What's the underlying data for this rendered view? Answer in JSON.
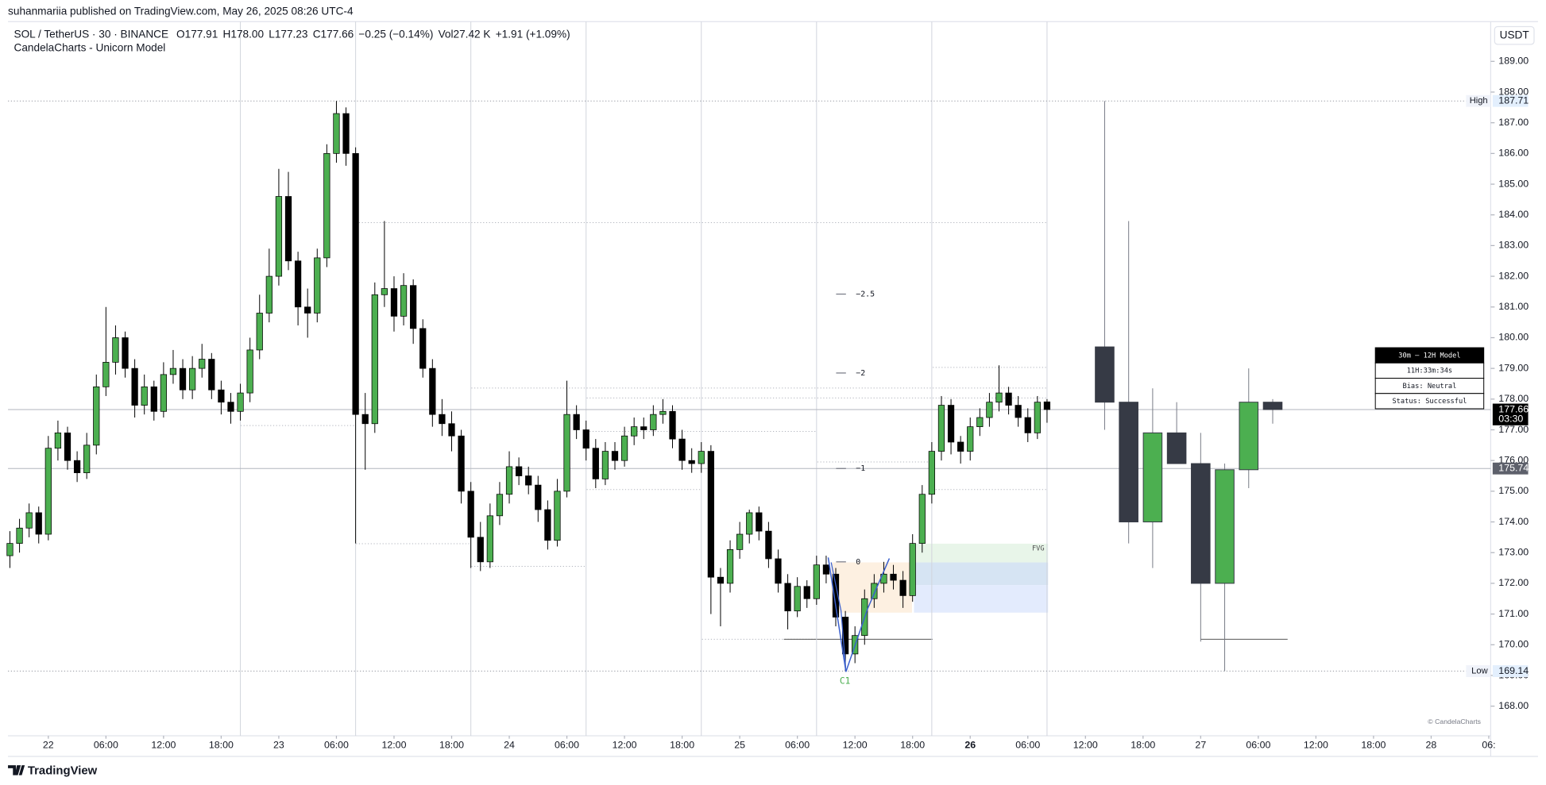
{
  "header": {
    "published": "suhanmariia published on TradingView.com, May 26, 2025 08:26 UTC-4",
    "footer": "TradingView"
  },
  "chart_data": {
    "type": "candlestick",
    "symbol": "SOL / TetherUS · 30 · BINANCE",
    "legend": [
      "O177.91",
      "H178.00",
      "L177.23",
      "C177.66",
      "−0.25 (−0.14%)",
      "Vol27.42 K",
      "+1.91 (+1.09%)"
    ],
    "indicator": "CandelaCharts - Unicorn Model",
    "currency": "USDT",
    "up_color": "#4caf50",
    "down_color": "#000000",
    "candles": [
      [
        172.9,
        173.7,
        172.5,
        173.3
      ],
      [
        173.3,
        174.1,
        173.0,
        173.8
      ],
      [
        173.8,
        174.6,
        173.5,
        174.3
      ],
      [
        174.3,
        174.5,
        173.3,
        173.6
      ],
      [
        173.6,
        176.8,
        173.4,
        176.4
      ],
      [
        176.4,
        177.3,
        176.0,
        176.9
      ],
      [
        176.9,
        177.1,
        175.7,
        176.0
      ],
      [
        176.0,
        176.3,
        175.3,
        175.6
      ],
      [
        175.6,
        176.9,
        175.4,
        176.5
      ],
      [
        176.5,
        178.8,
        176.2,
        178.4
      ],
      [
        178.4,
        181.0,
        178.1,
        179.2
      ],
      [
        179.2,
        180.4,
        178.8,
        180.0
      ],
      [
        180.0,
        180.2,
        178.7,
        179.0
      ],
      [
        179.0,
        179.3,
        177.4,
        177.8
      ],
      [
        177.8,
        178.8,
        177.5,
        178.4
      ],
      [
        178.4,
        178.6,
        177.3,
        177.6
      ],
      [
        177.6,
        179.2,
        177.4,
        178.8
      ],
      [
        178.8,
        179.6,
        178.5,
        179.0
      ],
      [
        179.0,
        179.3,
        178.0,
        178.3
      ],
      [
        178.3,
        179.4,
        178.0,
        179.0
      ],
      [
        179.0,
        179.8,
        178.7,
        179.3
      ],
      [
        179.3,
        179.5,
        178.0,
        178.3
      ],
      [
        178.3,
        178.6,
        177.5,
        177.9
      ],
      [
        177.9,
        178.2,
        177.2,
        177.6
      ],
      [
        177.6,
        178.5,
        177.3,
        178.2
      ],
      [
        178.2,
        180.0,
        177.9,
        179.6
      ],
      [
        179.6,
        181.4,
        179.3,
        180.8
      ],
      [
        180.8,
        182.9,
        180.5,
        182.0
      ],
      [
        182.0,
        185.5,
        181.7,
        184.6
      ],
      [
        184.6,
        185.4,
        182.2,
        182.5
      ],
      [
        182.5,
        182.8,
        180.4,
        181.0
      ],
      [
        181.0,
        181.6,
        180.0,
        180.8
      ],
      [
        180.8,
        182.9,
        180.5,
        182.6
      ],
      [
        182.6,
        186.3,
        182.3,
        186.0
      ],
      [
        186.0,
        187.71,
        185.7,
        187.3
      ],
      [
        187.3,
        187.5,
        185.6,
        186.0
      ],
      [
        186.0,
        186.2,
        173.3,
        177.5
      ],
      [
        177.5,
        178.2,
        175.7,
        177.2
      ],
      [
        177.2,
        181.8,
        176.9,
        181.4
      ],
      [
        181.4,
        183.8,
        181.0,
        181.6
      ],
      [
        181.6,
        182.0,
        180.2,
        180.7
      ],
      [
        180.7,
        182.1,
        180.4,
        181.7
      ],
      [
        181.7,
        181.9,
        179.8,
        180.3
      ],
      [
        180.3,
        180.6,
        178.7,
        179.0
      ],
      [
        179.0,
        179.3,
        177.1,
        177.5
      ],
      [
        177.5,
        178.0,
        176.8,
        177.2
      ],
      [
        177.2,
        177.6,
        176.3,
        176.8
      ],
      [
        176.8,
        177.0,
        174.6,
        175.0
      ],
      [
        175.0,
        175.3,
        172.5,
        173.5
      ],
      [
        173.5,
        174.0,
        172.4,
        172.7
      ],
      [
        172.7,
        174.6,
        172.5,
        174.2
      ],
      [
        174.2,
        175.3,
        173.9,
        174.9
      ],
      [
        174.9,
        176.3,
        174.6,
        175.8
      ],
      [
        175.8,
        176.1,
        175.2,
        175.5
      ],
      [
        175.5,
        175.8,
        174.9,
        175.2
      ],
      [
        175.2,
        175.5,
        174.0,
        174.4
      ],
      [
        174.4,
        174.7,
        173.1,
        173.4
      ],
      [
        173.4,
        175.4,
        173.2,
        175.0
      ],
      [
        175.0,
        178.6,
        174.8,
        177.5
      ],
      [
        177.5,
        177.8,
        176.7,
        177.0
      ],
      [
        177.0,
        177.3,
        176.0,
        176.4
      ],
      [
        176.4,
        176.7,
        175.1,
        175.4
      ],
      [
        175.4,
        176.6,
        175.2,
        176.3
      ],
      [
        176.3,
        176.6,
        175.7,
        176.0
      ],
      [
        176.0,
        177.1,
        175.8,
        176.8
      ],
      [
        176.8,
        177.4,
        176.5,
        177.1
      ],
      [
        177.1,
        177.4,
        176.7,
        177.0
      ],
      [
        177.0,
        177.8,
        176.8,
        177.5
      ],
      [
        177.5,
        178.0,
        177.2,
        177.6
      ],
      [
        177.6,
        177.8,
        176.4,
        176.7
      ],
      [
        176.7,
        177.0,
        175.7,
        176.0
      ],
      [
        176.0,
        176.4,
        175.6,
        175.9
      ],
      [
        175.9,
        176.6,
        175.6,
        176.3
      ],
      [
        176.3,
        176.5,
        171.0,
        172.2
      ],
      [
        172.2,
        172.5,
        170.6,
        172.0
      ],
      [
        172.0,
        173.4,
        171.7,
        173.1
      ],
      [
        173.1,
        174.0,
        172.8,
        173.6
      ],
      [
        173.6,
        174.4,
        173.3,
        174.3
      ],
      [
        174.3,
        174.5,
        173.4,
        173.7
      ],
      [
        173.7,
        174.0,
        172.5,
        172.8
      ],
      [
        172.8,
        173.1,
        171.7,
        172.0
      ],
      [
        172.0,
        172.3,
        170.5,
        171.1
      ],
      [
        171.1,
        172.2,
        170.9,
        171.9
      ],
      [
        171.9,
        172.1,
        171.2,
        171.5
      ],
      [
        171.5,
        172.9,
        171.3,
        172.6
      ],
      [
        172.6,
        172.9,
        172.0,
        172.3
      ],
      [
        172.3,
        172.5,
        170.6,
        170.9
      ],
      [
        170.9,
        171.1,
        169.14,
        169.7
      ],
      [
        169.7,
        170.6,
        169.4,
        170.3
      ],
      [
        170.3,
        171.8,
        170.0,
        171.5
      ],
      [
        171.5,
        172.3,
        171.2,
        172.0
      ],
      [
        172.0,
        172.7,
        171.7,
        172.3
      ],
      [
        172.3,
        172.6,
        171.8,
        172.1
      ],
      [
        172.1,
        172.4,
        171.2,
        171.6
      ],
      [
        171.6,
        173.6,
        171.4,
        173.3
      ],
      [
        173.3,
        175.2,
        173.0,
        174.9
      ],
      [
        174.9,
        176.6,
        174.6,
        176.3
      ],
      [
        176.3,
        178.1,
        176.0,
        177.8
      ],
      [
        177.8,
        178.0,
        176.2,
        176.6
      ],
      [
        176.6,
        176.8,
        175.9,
        176.3
      ],
      [
        176.3,
        177.4,
        176.0,
        177.1
      ],
      [
        177.1,
        177.7,
        176.8,
        177.4
      ],
      [
        177.4,
        178.2,
        177.1,
        177.9
      ],
      [
        177.9,
        179.1,
        177.6,
        178.2
      ],
      [
        178.2,
        178.4,
        177.5,
        177.8
      ],
      [
        177.8,
        178.1,
        177.1,
        177.4
      ],
      [
        177.4,
        177.7,
        176.6,
        176.9
      ],
      [
        176.9,
        178.1,
        176.7,
        177.9
      ],
      [
        177.91,
        178.0,
        177.23,
        177.66
      ]
    ],
    "htf_candles": {
      "up_color": "#4caf50",
      "down_color": "#363a45",
      "x": [
        114,
        116.5,
        119,
        121.5,
        124,
        126.5,
        129,
        131.5
      ],
      "ohlc": [
        [
          179.7,
          187.71,
          177.0,
          177.9
        ],
        [
          177.9,
          183.8,
          173.3,
          174.0
        ],
        [
          174.0,
          178.35,
          172.5,
          176.9
        ],
        [
          176.9,
          177.9,
          175.9,
          175.9
        ],
        [
          175.9,
          176.9,
          170.1,
          172.0
        ],
        [
          172.0,
          175.9,
          169.14,
          175.7
        ],
        [
          175.7,
          179.0,
          175.1,
          177.9
        ],
        [
          177.9,
          178.0,
          177.2,
          177.66
        ]
      ]
    },
    "xlim": [
      -0.2,
      154.2
    ],
    "xticks": [
      {
        "value": 4,
        "label": "22"
      },
      {
        "value": 10,
        "label": "06:00"
      },
      {
        "value": 16,
        "label": "12:00"
      },
      {
        "value": 22,
        "label": "18:00"
      },
      {
        "value": 28,
        "label": "23"
      },
      {
        "value": 34,
        "label": "06:00"
      },
      {
        "value": 40,
        "label": "12:00"
      },
      {
        "value": 46,
        "label": "18:00"
      },
      {
        "value": 52,
        "label": "24"
      },
      {
        "value": 58,
        "label": "06:00"
      },
      {
        "value": 64,
        "label": "12:00"
      },
      {
        "value": 70,
        "label": "18:00"
      },
      {
        "value": 76,
        "label": "25"
      },
      {
        "value": 82,
        "label": "06:00"
      },
      {
        "value": 88,
        "label": "12:00"
      },
      {
        "value": 94,
        "label": "18:00"
      },
      {
        "value": 100,
        "label": "26"
      },
      {
        "value": 106,
        "label": "06:00"
      },
      {
        "value": 112,
        "label": "12:00"
      },
      {
        "value": 118,
        "label": "18:00"
      },
      {
        "value": 124,
        "label": "27"
      },
      {
        "value": 130,
        "label": "06:00"
      },
      {
        "value": 136,
        "label": "12:00"
      },
      {
        "value": 142,
        "label": "18:00"
      },
      {
        "value": 148,
        "label": "28"
      },
      {
        "value": 154,
        "label": "06:"
      }
    ],
    "ylim": [
      167.1,
      190.1
    ],
    "yticks": [
      {
        "value": 168,
        "label": "168.00"
      },
      {
        "value": 169,
        "label": "169.00"
      },
      {
        "value": 170,
        "label": "170.00"
      },
      {
        "value": 171,
        "label": "171.00"
      },
      {
        "value": 172,
        "label": "172.00"
      },
      {
        "value": 173,
        "label": "173.00"
      },
      {
        "value": 174,
        "label": "174.00"
      },
      {
        "value": 175,
        "label": "175.00"
      },
      {
        "value": 176,
        "label": "176.00"
      },
      {
        "value": 177,
        "label": "177.00"
      },
      {
        "value": 178,
        "label": "178.00"
      },
      {
        "value": 179,
        "label": "179.00"
      },
      {
        "value": 180,
        "label": "180.00"
      },
      {
        "value": 181,
        "label": "181.00"
      },
      {
        "value": 182,
        "label": "182.00"
      },
      {
        "value": 183,
        "label": "183.00"
      },
      {
        "value": 184,
        "label": "184.00"
      },
      {
        "value": 185,
        "label": "185.00"
      },
      {
        "value": 186,
        "label": "186.00"
      },
      {
        "value": 187,
        "label": "187.00"
      },
      {
        "value": 188,
        "label": "188.00"
      },
      {
        "value": 189,
        "label": "189.00"
      }
    ],
    "price_labels": [
      {
        "label": "High",
        "value": 187.71
      },
      {
        "label": "Low",
        "value": 169.14
      }
    ],
    "last_price": {
      "value": 177.66,
      "countdown": "03:30"
    },
    "level_price": 175.74,
    "fib_levels": [
      {
        "value": 181.42,
        "label": "−2.5"
      },
      {
        "value": 178.85,
        "label": "−2"
      },
      {
        "value": 175.74,
        "label": "−1"
      },
      {
        "value": 172.7,
        "label": "0"
      }
    ],
    "annotations": {
      "fvg": "FVG",
      "c1": "C1",
      "watermark": "© CandelaCharts"
    },
    "model_table": [
      "30m – 12H Model",
      "11H:33m:34s",
      "Bias: Neutral",
      "Status: Successful"
    ]
  }
}
